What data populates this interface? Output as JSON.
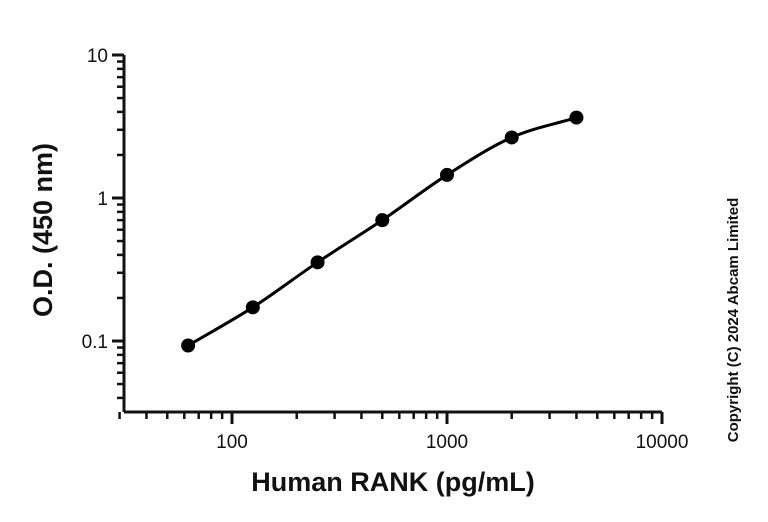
{
  "chart_data": {
    "type": "scatter",
    "xlabel": "Human RANK (pg/mL)",
    "ylabel": "O.D. (450 nm)",
    "xscale": "log",
    "yscale": "log",
    "xlim": [
      30,
      10000
    ],
    "ylim": [
      0.04,
      10
    ],
    "x_ticks": [
      {
        "value": 100,
        "label": "100"
      },
      {
        "value": 1000,
        "label": "1000"
      },
      {
        "value": 10000,
        "label": "10000"
      }
    ],
    "y_ticks": [
      {
        "value": 0.1,
        "label": "0.1"
      },
      {
        "value": 1,
        "label": "1"
      },
      {
        "value": 10,
        "label": "10"
      }
    ],
    "grid": false,
    "series": [
      {
        "x": [
          62.5,
          125,
          250,
          500,
          1000,
          2000,
          4000
        ],
        "y": [
          0.093,
          0.172,
          0.355,
          0.7,
          1.45,
          2.65,
          3.65
        ],
        "color": "#000000",
        "fit_curve": true
      }
    ],
    "annotations": [
      "Copyright (C) 2024 Abcam Limited"
    ]
  }
}
